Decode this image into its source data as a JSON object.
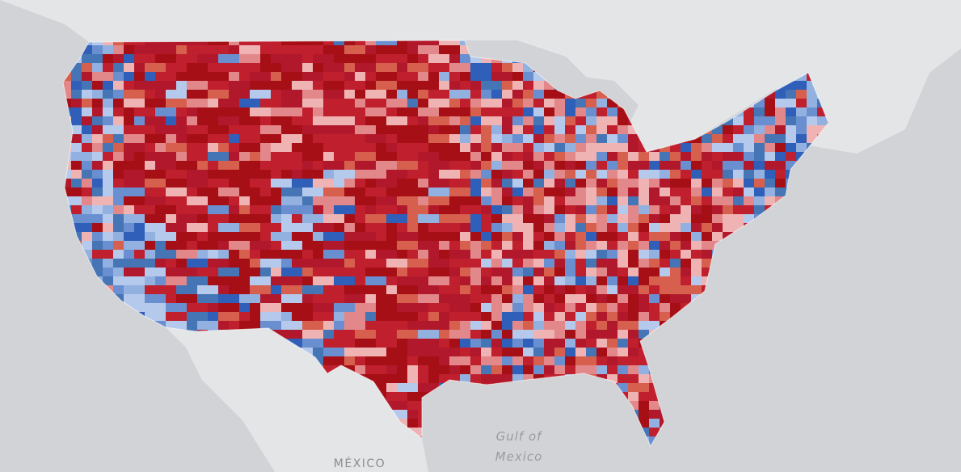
{
  "labels": {
    "gulf_line1": "Gulf of",
    "gulf_line2": "Mexico",
    "country": "MÉXICO"
  }
}
